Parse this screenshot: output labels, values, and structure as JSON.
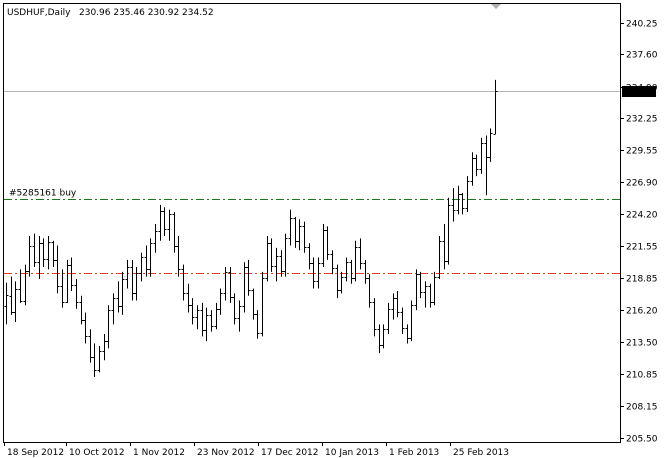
{
  "header": {
    "symbol_timeframe": "USDHUF,Daily",
    "ohlc": "230.96 235.46 230.92 234.52"
  },
  "price_tag": "234.52",
  "order_label": "#5285161 buy",
  "colors": {
    "background": "#ffffff",
    "bars": "#000000",
    "order_line": "#1a7a1a",
    "stop_line": "#e03c1e",
    "bid_line": "#b4b4b4",
    "price_tag_bg": "#000000",
    "price_tag_text": "#ffffff"
  },
  "chart_data": {
    "type": "ohlc",
    "ylim": [
      205.5,
      241.3
    ],
    "y_ticks": [
      "240.25",
      "237.60",
      "234.90",
      "232.25",
      "229.55",
      "226.90",
      "224.20",
      "221.55",
      "218.85",
      "216.20",
      "213.50",
      "210.85",
      "208.15",
      "205.50"
    ],
    "x_tick_labels": [
      "18 Sep 2012",
      "10 Oct 2012",
      "1 Nov 2012",
      "23 Nov 2012",
      "17 Dec 2012",
      "10 Jan 2013",
      "1 Feb 2013",
      "25 Feb 2013"
    ],
    "levels": {
      "order_price": 225.5,
      "stop_price": 219.3,
      "bid": 234.52
    },
    "bars": [
      [
        216.5,
        218.5,
        215.0,
        217.5
      ],
      [
        217.4,
        219.0,
        215.8,
        216.0
      ],
      [
        216.0,
        218.6,
        215.2,
        218.0
      ],
      [
        218.0,
        219.6,
        216.8,
        217.0
      ],
      [
        217.0,
        220.0,
        216.6,
        219.5
      ],
      [
        219.5,
        222.4,
        219.0,
        221.6
      ],
      [
        221.6,
        222.6,
        219.8,
        220.2
      ],
      [
        220.2,
        222.4,
        218.8,
        221.8
      ],
      [
        221.8,
        222.2,
        219.8,
        220.5
      ],
      [
        220.5,
        222.4,
        219.6,
        221.9
      ],
      [
        221.9,
        222.0,
        219.8,
        220.4
      ],
      [
        220.4,
        221.6,
        217.6,
        218.2
      ],
      [
        218.2,
        219.6,
        216.4,
        216.9
      ],
      [
        216.9,
        220.4,
        216.8,
        220.0
      ],
      [
        220.0,
        220.6,
        217.8,
        218.3
      ],
      [
        218.3,
        218.8,
        216.3,
        216.9
      ],
      [
        216.9,
        217.4,
        215.0,
        215.4
      ],
      [
        215.4,
        216.0,
        213.4,
        214.0
      ],
      [
        214.0,
        214.6,
        211.8,
        212.3
      ],
      [
        212.3,
        213.4,
        210.6,
        211.2
      ],
      [
        211.2,
        213.2,
        211.0,
        212.8
      ],
      [
        212.8,
        214.2,
        212.0,
        213.6
      ],
      [
        213.6,
        216.6,
        213.0,
        216.2
      ],
      [
        216.2,
        217.6,
        215.0,
        217.2
      ],
      [
        217.2,
        218.6,
        216.0,
        216.5
      ],
      [
        216.5,
        219.4,
        215.8,
        218.8
      ],
      [
        218.8,
        220.4,
        218.0,
        219.8
      ],
      [
        219.8,
        220.4,
        217.0,
        217.6
      ],
      [
        217.6,
        219.8,
        217.0,
        219.3
      ],
      [
        219.3,
        221.0,
        218.6,
        220.6
      ],
      [
        220.6,
        221.6,
        219.0,
        219.6
      ],
      [
        219.6,
        222.2,
        219.0,
        221.8
      ],
      [
        221.8,
        223.4,
        221.0,
        222.8
      ],
      [
        222.8,
        225.0,
        222.0,
        224.5
      ],
      [
        224.5,
        224.8,
        222.4,
        223.0
      ],
      [
        223.0,
        224.6,
        222.0,
        224.2
      ],
      [
        224.2,
        224.4,
        221.0,
        221.6
      ],
      [
        221.6,
        222.4,
        219.0,
        219.6
      ],
      [
        219.6,
        220.0,
        217.0,
        217.6
      ],
      [
        217.6,
        218.4,
        216.0,
        216.6
      ],
      [
        216.6,
        217.2,
        215.0,
        215.6
      ],
      [
        215.6,
        216.6,
        214.6,
        216.2
      ],
      [
        216.2,
        216.8,
        214.0,
        214.5
      ],
      [
        214.5,
        216.4,
        213.6,
        215.8
      ],
      [
        215.8,
        216.2,
        214.4,
        214.9
      ],
      [
        214.9,
        216.8,
        214.6,
        216.3
      ],
      [
        216.3,
        218.0,
        215.8,
        217.6
      ],
      [
        217.6,
        219.8,
        217.0,
        219.4
      ],
      [
        219.4,
        219.8,
        216.8,
        217.3
      ],
      [
        217.3,
        217.6,
        215.0,
        215.5
      ],
      [
        215.5,
        217.0,
        214.4,
        216.5
      ],
      [
        216.5,
        220.2,
        216.0,
        219.8
      ],
      [
        219.8,
        220.4,
        217.4,
        217.9
      ],
      [
        217.9,
        218.0,
        215.4,
        215.9
      ],
      [
        215.9,
        216.2,
        213.8,
        214.3
      ],
      [
        214.3,
        219.4,
        214.0,
        218.9
      ],
      [
        218.9,
        222.4,
        218.6,
        221.8
      ],
      [
        221.8,
        222.2,
        219.4,
        219.9
      ],
      [
        219.9,
        221.4,
        218.6,
        220.7
      ],
      [
        220.7,
        221.2,
        219.0,
        219.5
      ],
      [
        219.5,
        222.6,
        219.0,
        222.2
      ],
      [
        222.2,
        224.6,
        221.6,
        223.9
      ],
      [
        223.9,
        224.0,
        221.4,
        222.0
      ],
      [
        222.0,
        223.8,
        221.2,
        223.2
      ],
      [
        223.2,
        223.6,
        221.0,
        221.5
      ],
      [
        221.5,
        221.8,
        219.6,
        220.1
      ],
      [
        220.1,
        220.6,
        218.0,
        218.6
      ],
      [
        218.6,
        220.6,
        218.0,
        220.1
      ],
      [
        220.1,
        223.4,
        219.8,
        222.9
      ],
      [
        222.9,
        223.2,
        220.4,
        220.9
      ],
      [
        220.9,
        221.2,
        219.2,
        219.7
      ],
      [
        219.7,
        220.0,
        217.2,
        217.9
      ],
      [
        217.9,
        219.4,
        217.6,
        219.0
      ],
      [
        219.0,
        220.6,
        218.6,
        220.2
      ],
      [
        220.2,
        220.4,
        218.4,
        218.9
      ],
      [
        218.9,
        222.0,
        218.6,
        221.5
      ],
      [
        221.5,
        222.2,
        219.6,
        220.1
      ],
      [
        220.1,
        220.4,
        218.4,
        218.9
      ],
      [
        218.9,
        219.2,
        216.4,
        216.9
      ],
      [
        216.9,
        217.2,
        214.0,
        214.6
      ],
      [
        214.6,
        215.0,
        212.6,
        213.3
      ],
      [
        213.3,
        215.0,
        213.0,
        214.6
      ],
      [
        214.6,
        216.8,
        214.2,
        216.3
      ],
      [
        216.3,
        217.6,
        215.4,
        217.2
      ],
      [
        217.2,
        217.8,
        215.6,
        216.0
      ],
      [
        216.0,
        216.4,
        214.2,
        214.7
      ],
      [
        214.7,
        215.0,
        213.4,
        213.9
      ],
      [
        213.9,
        217.0,
        213.6,
        216.6
      ],
      [
        216.6,
        219.6,
        216.2,
        219.2
      ],
      [
        219.2,
        219.4,
        217.2,
        217.7
      ],
      [
        217.7,
        218.6,
        216.4,
        218.2
      ],
      [
        218.2,
        218.4,
        216.4,
        216.9
      ],
      [
        216.9,
        219.4,
        216.6,
        219.0
      ],
      [
        219.0,
        222.4,
        218.8,
        222.0
      ],
      [
        222.0,
        223.4,
        219.6,
        220.3
      ],
      [
        220.3,
        225.6,
        220.0,
        225.0
      ],
      [
        225.0,
        226.4,
        223.6,
        224.6
      ],
      [
        224.6,
        226.6,
        224.2,
        225.9
      ],
      [
        225.9,
        226.0,
        224.2,
        224.7
      ],
      [
        224.7,
        227.4,
        224.4,
        227.0
      ],
      [
        227.0,
        229.4,
        226.6,
        228.9
      ],
      [
        228.9,
        229.2,
        227.4,
        228.0
      ],
      [
        228.0,
        230.6,
        227.6,
        230.2
      ],
      [
        230.2,
        230.8,
        225.8,
        229.0
      ],
      [
        229.0,
        231.4,
        228.6,
        231.0
      ],
      [
        230.96,
        235.46,
        230.92,
        234.52
      ]
    ]
  }
}
